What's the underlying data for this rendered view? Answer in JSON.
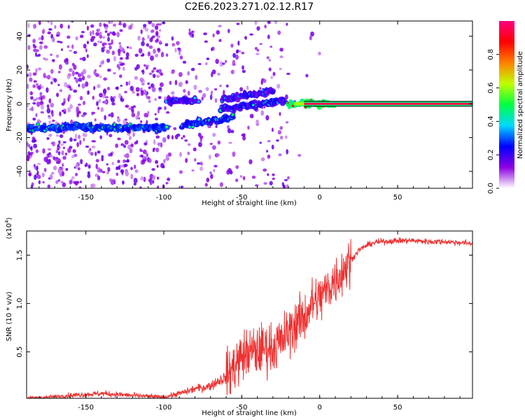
{
  "title": "C2E6.2023.271.02.12.R17",
  "chart_data": [
    {
      "type": "heatmap",
      "xlabel": "Height of straight line (km)",
      "ylabel": "Frequency (Hz)",
      "xlim": [
        -188,
        98
      ],
      "ylim": [
        -50,
        49
      ],
      "xticks": [
        -150,
        -100,
        -50,
        0,
        50
      ],
      "yticks": [
        -40,
        -20,
        0,
        20,
        40
      ],
      "colorbar": {
        "label": "Normalized spectral amplitude",
        "range": [
          0.0,
          1.0
        ],
        "ticks": [
          "0.0",
          "0.2",
          "0.4",
          "0.6",
          "0.8"
        ],
        "tick_values": [
          0.0,
          0.2,
          0.4,
          0.6,
          0.8
        ],
        "colormap": [
          "#ffffff",
          "#8c00e0",
          "#0000ff",
          "#00d8ff",
          "#00ff40",
          "#c0ff00",
          "#ff8000",
          "#ff0000",
          "#ff0080"
        ]
      },
      "features": [
        {
          "x": [
            -188,
            -98
          ],
          "frequency": -14,
          "amplitude": 0.45
        },
        {
          "x": [
            -98,
            -78
          ],
          "frequency": 2,
          "amplitude": 0.3
        },
        {
          "x": [
            -88,
            -55
          ],
          "frequency_start": -13,
          "frequency_end": -8,
          "amplitude": 0.4
        },
        {
          "x": [
            -63,
            -22
          ],
          "frequency_start": -3,
          "frequency_end": 2,
          "amplitude": 0.35
        },
        {
          "x": [
            -63,
            -30
          ],
          "frequency_start": 2,
          "frequency_end": 8,
          "amplitude": 0.3
        },
        {
          "x": [
            -20,
            10
          ],
          "frequency": 0,
          "amplitude": 0.8
        },
        {
          "x": [
            -15,
            98
          ],
          "frequency": 0,
          "amplitude": 1.0
        }
      ]
    },
    {
      "type": "line",
      "xlabel": "Height of straight line (km)",
      "ylabel": "SNR (10 * v/v)",
      "y_multiplier": "(x10",
      "y_multiplier_exponent": "4",
      "y_multiplier_close": ")",
      "xlim": [
        -188,
        98
      ],
      "ylim": [
        0.02,
        1.75
      ],
      "xticks": [
        -150,
        -100,
        -50,
        0,
        50
      ],
      "yticks": [
        "0.5",
        "1.0",
        "1.5"
      ],
      "ytick_values": [
        0.5,
        1.0,
        1.5
      ],
      "series": [
        {
          "color": "#ee3030",
          "x": [
            -188,
            -175,
            -160,
            -150,
            -140,
            -130,
            -120,
            -110,
            -100,
            -95,
            -90,
            -85,
            -80,
            -75,
            -70,
            -65,
            -60,
            -55,
            -50,
            -45,
            -40,
            -35,
            -30,
            -25,
            -20,
            -15,
            -10,
            -5,
            0,
            5,
            10,
            15,
            20,
            25,
            30,
            35,
            40,
            50,
            60,
            70,
            80,
            90,
            98
          ],
          "y": [
            0.02,
            0.03,
            0.05,
            0.06,
            0.07,
            0.06,
            0.05,
            0.04,
            0.03,
            0.05,
            0.07,
            0.09,
            0.12,
            0.13,
            0.15,
            0.2,
            0.24,
            0.35,
            0.45,
            0.5,
            0.5,
            0.55,
            0.55,
            0.6,
            0.7,
            0.8,
            0.85,
            1.0,
            1.05,
            1.15,
            1.25,
            1.35,
            1.45,
            1.55,
            1.6,
            1.63,
            1.64,
            1.65,
            1.65,
            1.64,
            1.64,
            1.63,
            1.62
          ]
        }
      ]
    }
  ]
}
